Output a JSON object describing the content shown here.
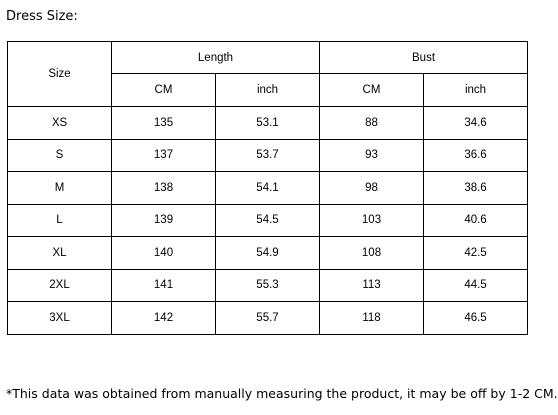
{
  "title": "Dress Size:",
  "table": {
    "size_header": "Size",
    "groups": [
      {
        "label": "Length",
        "units": [
          "CM",
          "inch"
        ]
      },
      {
        "label": "Bust",
        "units": [
          "CM",
          "inch"
        ]
      }
    ],
    "rows": [
      {
        "size": "XS",
        "length_cm": "135",
        "length_inch": "53.1",
        "bust_cm": "88",
        "bust_inch": "34.6"
      },
      {
        "size": "S",
        "length_cm": "137",
        "length_inch": "53.7",
        "bust_cm": "93",
        "bust_inch": "36.6"
      },
      {
        "size": "M",
        "length_cm": "138",
        "length_inch": "54.1",
        "bust_cm": "98",
        "bust_inch": "38.6"
      },
      {
        "size": "L",
        "length_cm": "139",
        "length_inch": "54.5",
        "bust_cm": "103",
        "bust_inch": "40.6"
      },
      {
        "size": "XL",
        "length_cm": "140",
        "length_inch": "54.9",
        "bust_cm": "108",
        "bust_inch": "42.5"
      },
      {
        "size": "2XL",
        "length_cm": "141",
        "length_inch": "55.3",
        "bust_cm": "113",
        "bust_inch": "44.5"
      },
      {
        "size": "3XL",
        "length_cm": "142",
        "length_inch": "55.7",
        "bust_cm": "118",
        "bust_inch": "46.5"
      }
    ]
  },
  "footnote": "*This data was obtained from manually measuring the product, it may be off by 1-2 CM."
}
